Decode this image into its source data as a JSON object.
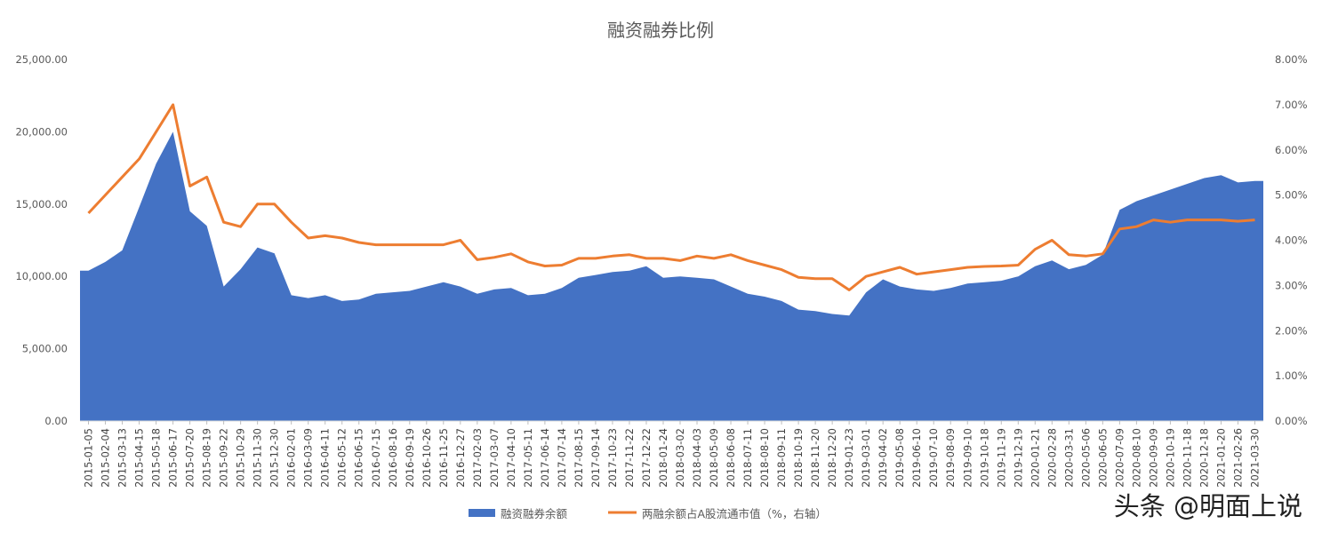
{
  "chart_data": {
    "type": "area",
    "title": "融资融券比例",
    "xlabel": "",
    "ylabel": "",
    "y_left_lim": [
      0,
      25000
    ],
    "y_right_lim": [
      0,
      0.08
    ],
    "y_left_ticks": [
      "0.00",
      "5,000.00",
      "10,000.00",
      "15,000.00",
      "20,000.00",
      "25,000.00"
    ],
    "y_right_ticks": [
      "0.00%",
      "1.00%",
      "2.00%",
      "3.00%",
      "4.00%",
      "5.00%",
      "6.00%",
      "7.00%",
      "8.00%"
    ],
    "x_ticks": [
      "2015-01-05",
      "2015-02-04",
      "2015-03-13",
      "2015-04-15",
      "2015-05-18",
      "2015-06-17",
      "2015-07-20",
      "2015-08-19",
      "2015-09-22",
      "2015-10-29",
      "2015-11-30",
      "2015-12-30",
      "2016-02-01",
      "2016-03-09",
      "2016-04-11",
      "2016-05-12",
      "2016-06-15",
      "2016-07-15",
      "2016-08-16",
      "2016-09-19",
      "2016-10-26",
      "2016-11-25",
      "2016-12-27",
      "2017-02-03",
      "2017-03-07",
      "2017-04-10",
      "2017-05-11",
      "2017-06-14",
      "2017-07-14",
      "2017-08-15",
      "2017-09-14",
      "2017-10-23",
      "2017-11-22",
      "2017-12-22",
      "2018-01-24",
      "2018-03-02",
      "2018-04-03",
      "2018-05-09",
      "2018-06-08",
      "2018-07-11",
      "2018-08-10",
      "2018-09-11",
      "2018-10-19",
      "2018-11-20",
      "2018-12-20",
      "2019-01-23",
      "2019-03-01",
      "2019-04-02",
      "2019-05-08",
      "2019-06-10",
      "2019-07-10",
      "2019-08-09",
      "2019-09-10",
      "2019-10-18",
      "2019-11-19",
      "2019-12-19",
      "2020-01-21",
      "2020-02-28",
      "2020-03-31",
      "2020-05-06",
      "2020-06-05",
      "2020-07-09",
      "2020-08-10",
      "2020-09-09",
      "2020-10-19",
      "2020-11-18",
      "2020-12-18",
      "2021-01-20",
      "2021-02-26",
      "2021-03-30"
    ],
    "series": [
      {
        "name": "融资融券余额",
        "axis": "left",
        "color": "#4472C4",
        "values": [
          10400,
          11000,
          11800,
          14800,
          17800,
          20000,
          14500,
          13500,
          9300,
          10500,
          12000,
          11600,
          8700,
          8500,
          8700,
          8300,
          8400,
          8800,
          8900,
          9000,
          9300,
          9600,
          9300,
          8800,
          9100,
          9200,
          8700,
          8800,
          9200,
          9900,
          10100,
          10300,
          10400,
          10700,
          9900,
          10000,
          9900,
          9800,
          9300,
          8800,
          8600,
          8300,
          7700,
          7600,
          7400,
          7300,
          8900,
          9800,
          9300,
          9100,
          9000,
          9200,
          9500,
          9600,
          9700,
          10000,
          10700,
          11100,
          10500,
          10800,
          11500,
          14600,
          15200,
          15600,
          16000,
          16400,
          16800,
          17000,
          16500,
          16600
        ]
      },
      {
        "name": "两融余额占A股流通市值（%，右轴）",
        "axis": "right",
        "color": "#ED7D31",
        "values": [
          0.046,
          0.05,
          0.054,
          0.058,
          0.064,
          0.07,
          0.052,
          0.054,
          0.044,
          0.043,
          0.048,
          0.048,
          0.044,
          0.0405,
          0.041,
          0.0405,
          0.0395,
          0.039,
          0.039,
          0.039,
          0.039,
          0.039,
          0.04,
          0.0357,
          0.0362,
          0.037,
          0.0352,
          0.0343,
          0.0345,
          0.036,
          0.036,
          0.0365,
          0.0368,
          0.036,
          0.036,
          0.0355,
          0.0365,
          0.036,
          0.0368,
          0.0355,
          0.0345,
          0.0335,
          0.0318,
          0.0315,
          0.0315,
          0.029,
          0.032,
          0.033,
          0.034,
          0.0325,
          0.033,
          0.0335,
          0.034,
          0.0342,
          0.0343,
          0.0345,
          0.038,
          0.04,
          0.0368,
          0.0365,
          0.037,
          0.0425,
          0.043,
          0.0445,
          0.044,
          0.0445,
          0.0445,
          0.0445,
          0.0442,
          0.0445
        ]
      }
    ],
    "legend_position": "bottom",
    "grid": false
  },
  "watermark": {
    "text": "头条 @明面上说"
  }
}
